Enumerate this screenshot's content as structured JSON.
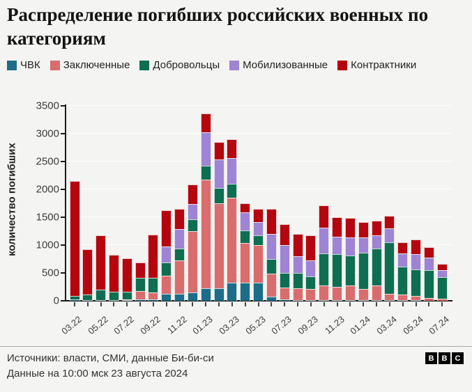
{
  "title": "Распределение погибших российских военных по категориям",
  "footer": {
    "source_line": "Источники: власти, СМИ, данные Би-би-си",
    "data_line": "Данные на 10:00 мск 23 августа 2024",
    "logo_letters": [
      "B",
      "B",
      "C"
    ]
  },
  "colors": {
    "background": "#f4f4f2",
    "axis": "#1a1a1a",
    "grid": "rgba(255,255,255,0.85)"
  },
  "chart_data": {
    "type": "bar",
    "stacked": true,
    "title": "Распределение погибших российских военных по категориям",
    "xlabel": "",
    "ylabel": "количество погибших",
    "ylim": [
      0,
      3500
    ],
    "yticks": [
      0,
      500,
      1000,
      1500,
      2000,
      2500,
      3000,
      3500
    ],
    "grid": true,
    "legend_position": "top",
    "x_labels_shown_every": 2,
    "categories": [
      "03.22",
      "04.22",
      "05.22",
      "06.22",
      "07.22",
      "08.22",
      "09.22",
      "10.22",
      "11.22",
      "12.22",
      "01.23",
      "02.23",
      "03.23",
      "04.23",
      "05.23",
      "06.23",
      "07.23",
      "08.23",
      "09.23",
      "10.23",
      "11.23",
      "12.23",
      "01.24",
      "02.24",
      "03.24",
      "04.24",
      "05.24",
      "06.24",
      "07.24"
    ],
    "series": [
      {
        "name": "ЧВК",
        "color": "#1d6d89",
        "values": [
          30,
          10,
          10,
          10,
          10,
          30,
          20,
          120,
          130,
          150,
          230,
          230,
          320,
          330,
          330,
          70,
          20,
          15,
          10,
          10,
          10,
          10,
          10,
          10,
          5,
          5,
          5,
          0,
          0
        ]
      },
      {
        "name": "Заключенные",
        "color": "#d96d6d",
        "values": [
          0,
          0,
          0,
          0,
          15,
          150,
          125,
          330,
          590,
          1100,
          1950,
          1520,
          1530,
          710,
          670,
          420,
          220,
          210,
          195,
          260,
          240,
          260,
          200,
          260,
          115,
          95,
          75,
          50,
          40
        ]
      },
      {
        "name": "Добровольцы",
        "color": "#0e6e51",
        "values": [
          55,
          105,
          185,
          150,
          135,
          230,
          270,
          240,
          220,
          215,
          250,
          270,
          250,
          220,
          170,
          255,
          265,
          270,
          230,
          575,
          590,
          540,
          650,
          670,
          920,
          500,
          480,
          500,
          380
        ]
      },
      {
        "name": "Мобилизованные",
        "color": "#9e84d4",
        "values": [
          0,
          0,
          0,
          0,
          0,
          0,
          0,
          290,
          350,
          270,
          590,
          520,
          465,
          330,
          240,
          450,
          495,
          300,
          290,
          460,
          310,
          330,
          270,
          230,
          250,
          240,
          270,
          230,
          130
        ]
      },
      {
        "name": "Контрактники",
        "color": "#b5060f",
        "values": [
          2070,
          805,
          980,
          660,
          600,
          280,
          770,
          650,
          360,
          355,
          340,
          315,
          340,
          160,
          240,
          460,
          380,
          400,
          450,
          410,
          350,
          340,
          285,
          270,
          230,
          200,
          260,
          180,
          110
        ]
      }
    ]
  }
}
